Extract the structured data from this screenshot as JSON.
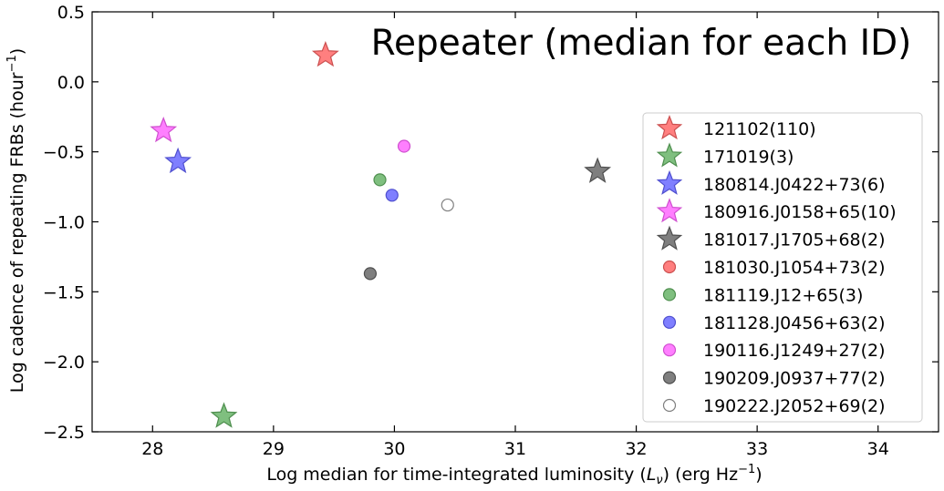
{
  "chart_data": {
    "type": "scatter",
    "title": "Repeater (median for each ID)",
    "xlabel": "Log median for time-integrated luminosity (",
    "xlabel_symbol": "L",
    "xlabel_sub": "ν",
    "xlabel_after": ") (erg Hz",
    "xlabel_sup": "−1",
    "xlabel_end": ")",
    "ylabel": "Log cadence of repeating FRBs (hour",
    "ylabel_sup": "−1",
    "ylabel_end": ")",
    "xlim": [
      27.5,
      34.5
    ],
    "ylim": [
      -2.5,
      0.5
    ],
    "xticks": [
      28,
      29,
      30,
      31,
      32,
      33,
      34
    ],
    "yticks": [
      0.5,
      0.0,
      -0.5,
      -1.0,
      -1.5,
      -2.0,
      -2.5
    ],
    "ytick_labels": [
      "0.5",
      "0.0",
      "−0.5",
      "−1.0",
      "−1.5",
      "−2.0",
      "−2.5"
    ],
    "grid": false,
    "legend_position": "right",
    "series": [
      {
        "name": "121102(110)",
        "marker": "star",
        "color": "#ff7f7f",
        "edge": "#cc5050",
        "filled": true,
        "x": 29.43,
        "y": 0.19
      },
      {
        "name": "171019(3)",
        "marker": "star",
        "color": "#7fbf7f",
        "edge": "#4f8f4f",
        "filled": true,
        "x": 28.59,
        "y": -2.39
      },
      {
        "name": "180814.J0422+73(6)",
        "marker": "star",
        "color": "#7f7fff",
        "edge": "#4f4fcf",
        "filled": true,
        "x": 28.21,
        "y": -0.57
      },
      {
        "name": "180916.J0158+65(10)",
        "marker": "star",
        "color": "#ff7fff",
        "edge": "#cf4fcf",
        "filled": true,
        "x": 28.09,
        "y": -0.35
      },
      {
        "name": "181017.J1705+68(2)",
        "marker": "star",
        "color": "#7f7f7f",
        "edge": "#4f4f4f",
        "filled": true,
        "x": 31.68,
        "y": -0.64
      },
      {
        "name": "181030.J1054+73(2)",
        "marker": "circle",
        "color": "#ff7f7f",
        "edge": "#cc5050",
        "filled": true,
        "x": null,
        "y": null
      },
      {
        "name": "181119.J12+65(3)",
        "marker": "circle",
        "color": "#7fbf7f",
        "edge": "#4f8f4f",
        "filled": true,
        "x": 29.88,
        "y": -0.7
      },
      {
        "name": "181128.J0456+63(2)",
        "marker": "circle",
        "color": "#7f7fff",
        "edge": "#4f4fcf",
        "filled": true,
        "x": 29.98,
        "y": -0.81
      },
      {
        "name": "190116.J1249+27(2)",
        "marker": "circle",
        "color": "#ff7fff",
        "edge": "#cf4fcf",
        "filled": true,
        "x": 30.08,
        "y": -0.46
      },
      {
        "name": "190209.J0937+77(2)",
        "marker": "circle",
        "color": "#7f7f7f",
        "edge": "#4f4f4f",
        "filled": true,
        "x": 29.8,
        "y": -1.37
      },
      {
        "name": "190222.J2052+69(2)",
        "marker": "circle",
        "color": "#ffffff",
        "edge": "#7f7f7f",
        "filled": false,
        "x": 30.44,
        "y": -0.88
      }
    ]
  }
}
